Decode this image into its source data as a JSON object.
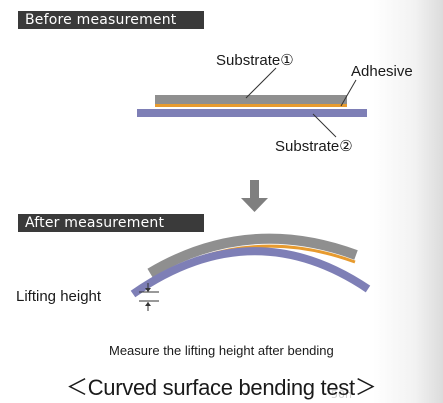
{
  "before_label": "Before measurement",
  "after_label": "After measurement",
  "labels": {
    "substrate1": "Substrate①",
    "adhesive": "Adhesive",
    "substrate2": "Substrate②",
    "lifting_height": "Lifting height"
  },
  "note": "Measure the lifting height after bending",
  "caption": "＜Curved surface bending test＞",
  "colors": {
    "substrate1": "#8f8f8f",
    "adhesive": "#e79b2f",
    "substrate2": "#7e7fb6",
    "arrow": "#7f7f7f",
    "label_bar": "#3a3a3a"
  }
}
